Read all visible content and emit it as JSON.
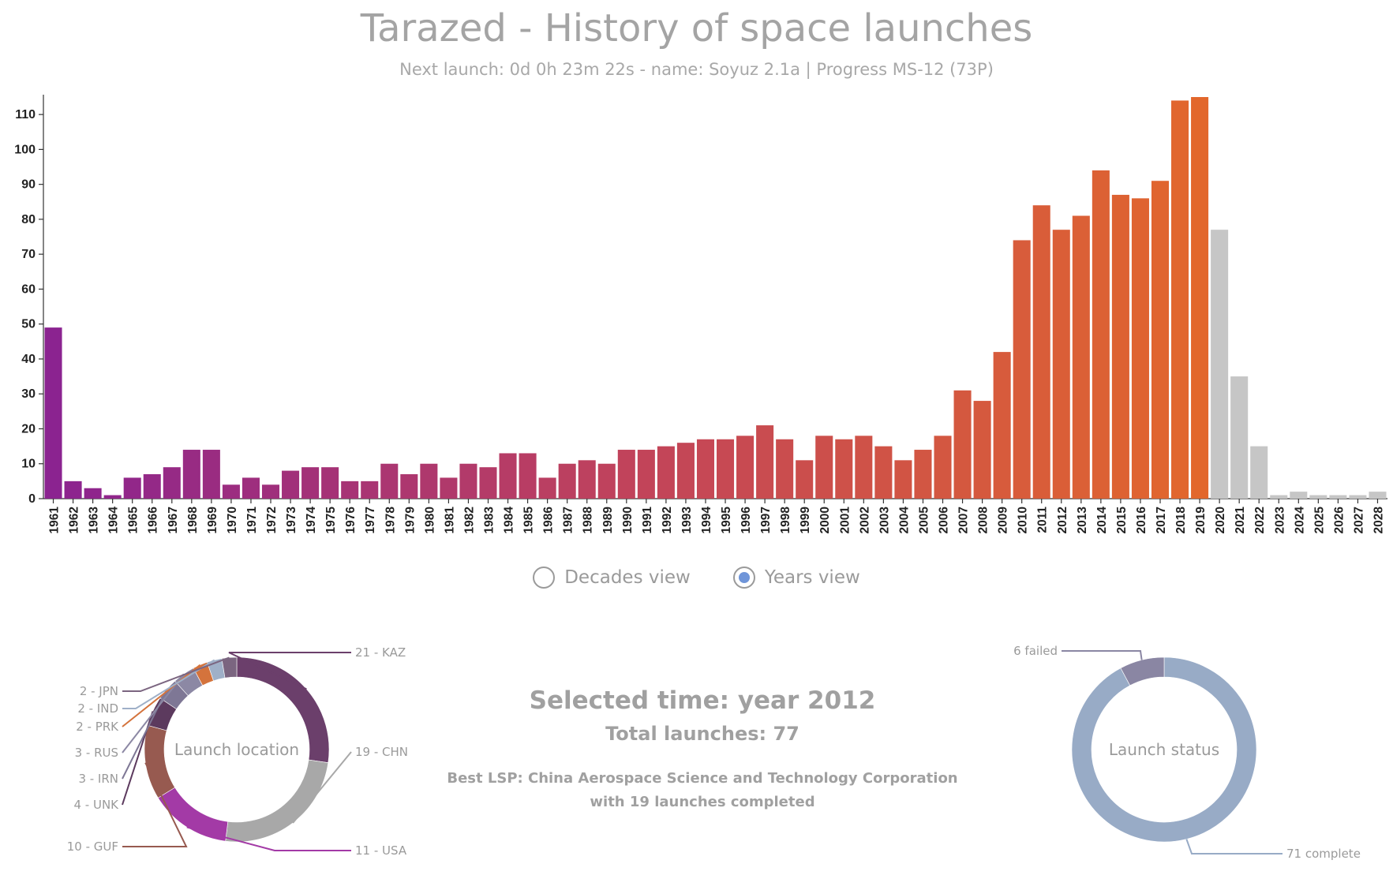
{
  "page": {
    "title": "Tarazed - History of space launches",
    "subtitle": "Next launch: 0d 0h 23m 22s - name: Soyuz 2.1a | Progress MS-12 (73P)"
  },
  "view_toggle": {
    "decades_label": "Decades view",
    "years_label": "Years view",
    "selected": "years"
  },
  "info": {
    "selected_time": "Selected time: year 2012",
    "total_launches": "Total launches: 77",
    "best_lsp_line1": "Best LSP: China Aerospace Science and Technology Corporation",
    "best_lsp_line2": "with 19 launches completed"
  },
  "chart_data": [
    {
      "type": "bar",
      "categories": [
        "1961",
        "1962",
        "1963",
        "1964",
        "1965",
        "1966",
        "1967",
        "1968",
        "1969",
        "1970",
        "1971",
        "1972",
        "1973",
        "1974",
        "1975",
        "1976",
        "1977",
        "1978",
        "1979",
        "1980",
        "1981",
        "1982",
        "1983",
        "1984",
        "1985",
        "1986",
        "1987",
        "1988",
        "1989",
        "1990",
        "1991",
        "1992",
        "1993",
        "1994",
        "1995",
        "1996",
        "1997",
        "1998",
        "1999",
        "2000",
        "2001",
        "2002",
        "2003",
        "2004",
        "2005",
        "2006",
        "2007",
        "2008",
        "2009",
        "2010",
        "2011",
        "2012",
        "2013",
        "2014",
        "2015",
        "2016",
        "2017",
        "2018",
        "2019",
        "2020",
        "2021",
        "2022",
        "2023",
        "2024",
        "2025",
        "2026",
        "2027",
        "2028"
      ],
      "values": [
        49,
        5,
        3,
        1,
        6,
        7,
        9,
        14,
        14,
        4,
        6,
        4,
        8,
        9,
        9,
        5,
        5,
        10,
        7,
        10,
        6,
        10,
        9,
        13,
        13,
        6,
        10,
        11,
        10,
        14,
        14,
        15,
        16,
        17,
        17,
        18,
        21,
        17,
        11,
        18,
        17,
        18,
        15,
        11,
        14,
        18,
        31,
        28,
        42,
        74,
        84,
        77,
        81,
        94,
        87,
        86,
        91,
        114,
        115,
        77,
        35,
        15,
        1,
        2,
        1,
        1,
        1,
        2
      ],
      "future_from": "2020",
      "ylim": [
        0,
        115
      ],
      "yticks": [
        0,
        10,
        20,
        30,
        40,
        50,
        60,
        70,
        80,
        90,
        100,
        110
      ],
      "colors": {
        "start": "#8b2390",
        "mid": "#c1435b",
        "end": "#e2672c",
        "future": "#c6c6c6"
      }
    },
    {
      "type": "pie",
      "title": "Launch location",
      "slices": [
        {
          "label": "21 - KAZ",
          "value": 21,
          "color": "#6b3f6b"
        },
        {
          "label": "19 - CHN",
          "value": 19,
          "color": "#a8a8a8"
        },
        {
          "label": "11 - USA",
          "value": 11,
          "color": "#a33aa6"
        },
        {
          "label": "10 - GUF",
          "value": 10,
          "color": "#975a50"
        },
        {
          "label": "4 - UNK",
          "value": 4,
          "color": "#5c3a5e"
        },
        {
          "label": "3 - IRN",
          "value": 3,
          "color": "#7e7795"
        },
        {
          "label": "3 - RUS",
          "value": 3,
          "color": "#8c88a4"
        },
        {
          "label": "2 - PRK",
          "value": 2,
          "color": "#d4733c"
        },
        {
          "label": "2 - IND",
          "value": 2,
          "color": "#9fb0c8"
        },
        {
          "label": "2 - JPN",
          "value": 2,
          "color": "#7b6580"
        }
      ]
    },
    {
      "type": "pie",
      "title": "Launch status",
      "slices": [
        {
          "label": "71 complete",
          "value": 71,
          "color": "#98abc6"
        },
        {
          "label": "6 failed",
          "value": 6,
          "color": "#8a86a3"
        }
      ]
    }
  ]
}
